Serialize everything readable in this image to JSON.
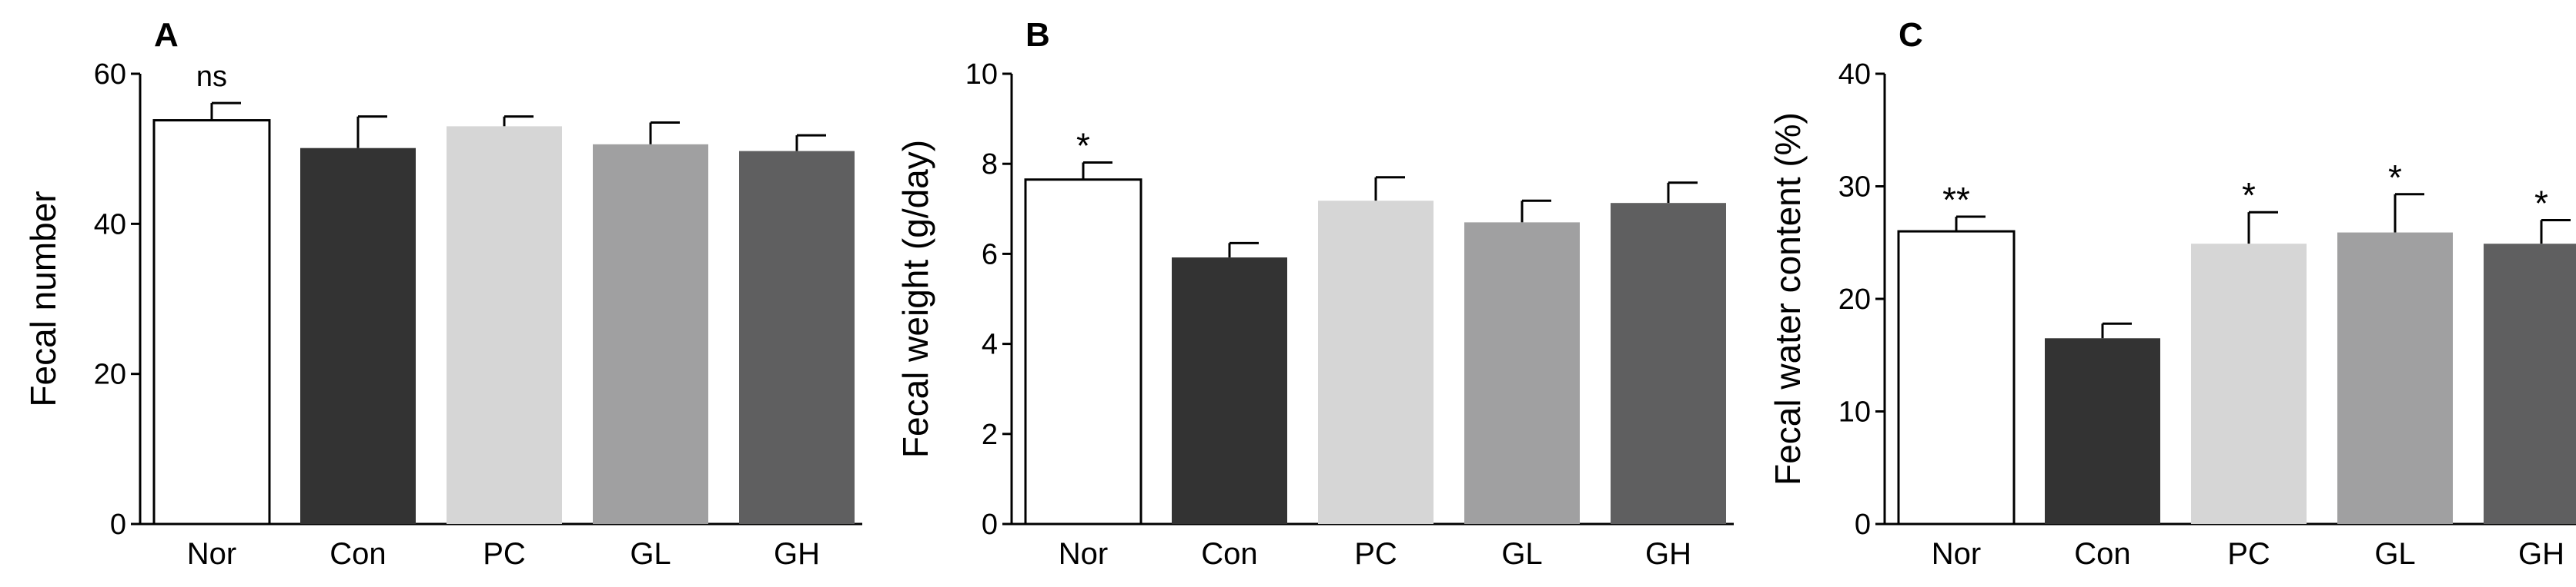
{
  "figure": {
    "description_free": true
  },
  "chart_data": [
    {
      "type": "bar",
      "panel_label": "A",
      "title": "",
      "xlabel": "",
      "ylabel": "Fecal number",
      "categories": [
        "Nor",
        "Con",
        "PC",
        "GL",
        "GH"
      ],
      "values": [
        53.8,
        50.1,
        53.0,
        50.6,
        49.7
      ],
      "errors": [
        2.3,
        4.2,
        1.3,
        2.9,
        2.1
      ],
      "annotations": [
        "ns",
        "",
        "",
        "",
        ""
      ],
      "ylim": [
        0,
        60
      ],
      "yticks": [
        0,
        20,
        40,
        60
      ],
      "colors": [
        "#ffffff",
        "#333333",
        "#d6d6d6",
        "#a0a0a1",
        "#5f5f60"
      ],
      "edge_color": "#000000",
      "grid": false
    },
    {
      "type": "bar",
      "panel_label": "B",
      "title": "",
      "xlabel": "",
      "ylabel": "Fecal weight (g/day)",
      "categories": [
        "Nor",
        "Con",
        "PC",
        "GL",
        "GH"
      ],
      "values": [
        7.65,
        5.92,
        7.18,
        6.7,
        7.13
      ],
      "errors": [
        0.38,
        0.32,
        0.52,
        0.48,
        0.45
      ],
      "annotations": [
        "*",
        "",
        "",
        "",
        ""
      ],
      "ylim": [
        0,
        10
      ],
      "yticks": [
        0,
        2,
        4,
        6,
        8,
        10
      ],
      "colors": [
        "#ffffff",
        "#333333",
        "#d6d6d6",
        "#a0a0a1",
        "#5f5f60"
      ],
      "edge_color": "#000000",
      "grid": false
    },
    {
      "type": "bar",
      "panel_label": "C",
      "title": "",
      "xlabel": "",
      "ylabel": "Fecal water content (%)",
      "categories": [
        "Nor",
        "Con",
        "PC",
        "GL",
        "GH"
      ],
      "values": [
        26.0,
        16.5,
        24.9,
        25.9,
        24.9
      ],
      "errors": [
        1.3,
        1.3,
        2.8,
        3.4,
        2.1
      ],
      "annotations": [
        "**",
        "",
        "*",
        "*",
        "*"
      ],
      "ylim": [
        0,
        40
      ],
      "yticks": [
        0,
        10,
        20,
        30,
        40
      ],
      "colors": [
        "#ffffff",
        "#333333",
        "#d6d6d6",
        "#a0a0a1",
        "#5f5f60"
      ],
      "edge_color": "#000000",
      "grid": false
    }
  ]
}
